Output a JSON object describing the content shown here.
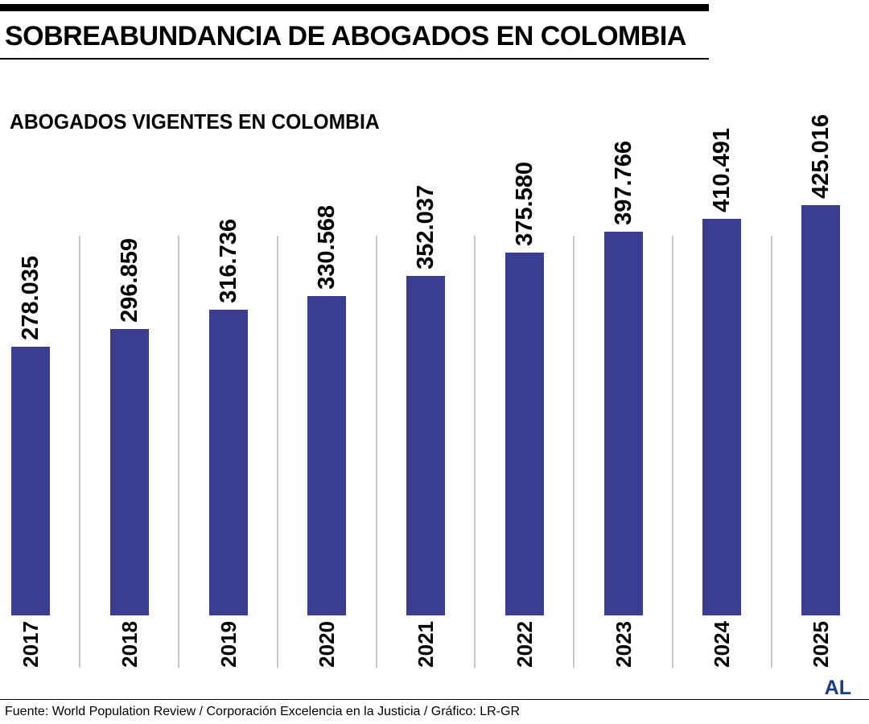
{
  "header": {
    "title": "SOBREABUNDANCIA DE ABOGADOS EN COLOMBIA"
  },
  "chart_data": {
    "type": "bar",
    "title": "ABOGADOS VIGENTES EN COLOMBIA",
    "categories": [
      "2017",
      "2018",
      "2019",
      "2020",
      "2021",
      "2022",
      "2023",
      "2024",
      "2025"
    ],
    "values": [
      278035,
      296859,
      316736,
      330568,
      352037,
      375580,
      397766,
      410491,
      425016
    ],
    "value_labels": [
      "278.035",
      "296.859",
      "316.736",
      "330.568",
      "352.037",
      "375.580",
      "397.766",
      "410.491",
      "425.016"
    ],
    "bar_color": "#3a3d90",
    "gridline_color": "#c9c9c9",
    "label_rotation": 90,
    "orientation": "vertical",
    "ylim": [
      0,
      425016
    ],
    "legend": "none",
    "xlabel": "",
    "ylabel": ""
  },
  "footer": {
    "source": "Fuente: World Population Review / Corporación Excelencia en la Justicia / Gráfico: LR-GR",
    "logo": "AL",
    "logo_color": "#1b3a8f"
  }
}
